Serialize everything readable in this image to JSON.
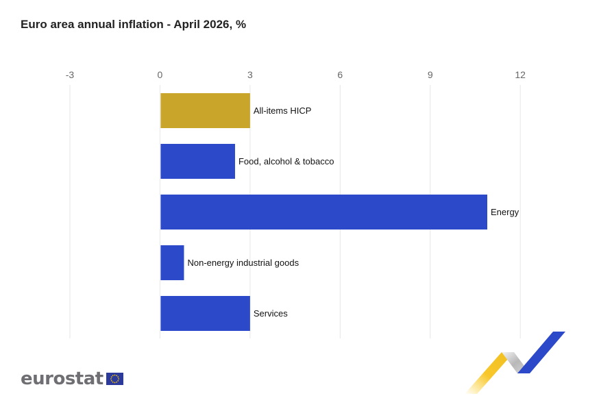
{
  "title": "Euro area annual inflation - April 2026, %",
  "brand": {
    "name": "eurostat",
    "flag_color": "#2b3a9b",
    "star_color": "#ffcc00"
  },
  "chart_data": {
    "type": "bar",
    "orientation": "horizontal",
    "title": "Euro area annual inflation - April 2026, %",
    "xlabel": "",
    "ylabel": "",
    "xlim": [
      -3,
      13
    ],
    "ticks": [
      -3,
      0,
      3,
      6,
      9,
      12
    ],
    "grid": true,
    "legend": "none",
    "categories": [
      "All-items HICP",
      "Food, alcohol & tobacco",
      "Energy",
      "Non-energy industrial goods",
      "Services"
    ],
    "values": [
      3.0,
      2.5,
      10.9,
      0.8,
      3.0
    ],
    "colors": [
      "#c9a52a",
      "#2b49c8",
      "#2b49c8",
      "#2b49c8",
      "#2b49c8"
    ]
  }
}
